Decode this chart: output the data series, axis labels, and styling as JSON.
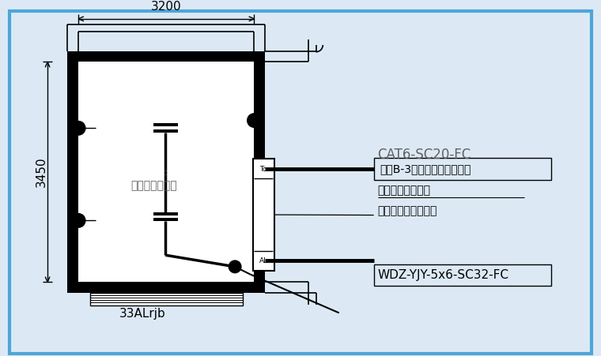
{
  "bg_color": "#dce9f5",
  "line_color": "#000000",
  "text_color": "#606060",
  "border_color": "#4da6d8",
  "fig_bg": "#dce9f5",
  "label_3200": "3200",
  "label_3450": "3450",
  "label_room": "人防警报控制室",
  "label_33ALrjb": "33ALrjb",
  "label_To": "To",
  "label_AL": "AL",
  "label_cat6": "CAT6-SC20-FC",
  "label_yinzi": "引自B-3号楼电井弱电交接筱",
  "label_renfang": "人防警报器控制筱",
  "label_provide": "（由人防部门提供）",
  "label_wdz": "WDZ-YJY-5x6-SC32-FC"
}
